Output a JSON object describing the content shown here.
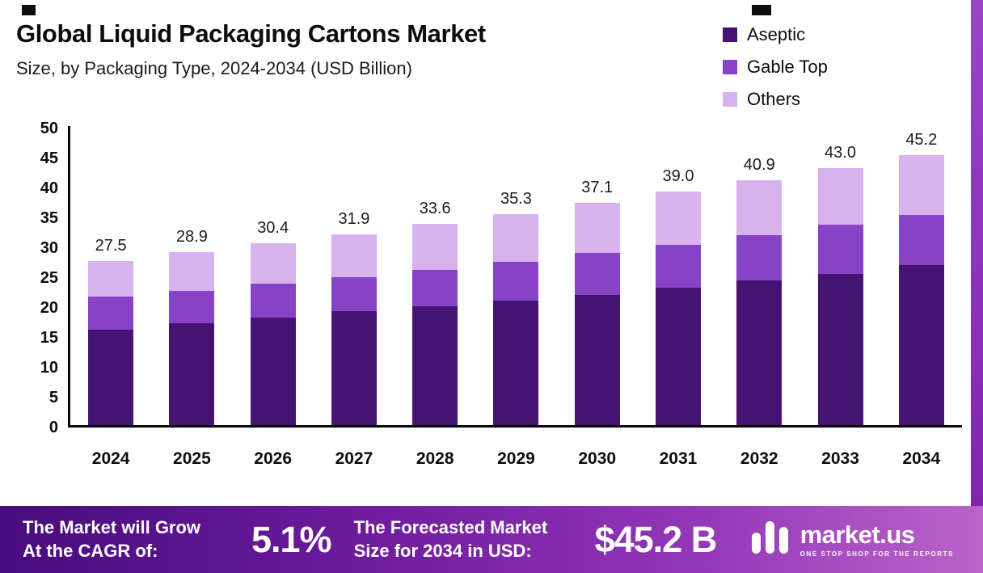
{
  "header": {
    "title": "Global Liquid Packaging Cartons Market",
    "subtitle": "Size, by Packaging Type, 2024-2034 (USD Billion)"
  },
  "legend": [
    {
      "label": "Aseptic",
      "color": "#451472"
    },
    {
      "label": "Gable Top",
      "color": "#8742c8"
    },
    {
      "label": "Others",
      "color": "#d8b2ec"
    }
  ],
  "chart_data": {
    "type": "bar",
    "stacked": true,
    "title": "Global Liquid Packaging Cartons Market Size, by Packaging Type, 2024-2034 (USD Billion)",
    "unit": "USD Billion",
    "categories": [
      "2024",
      "2025",
      "2026",
      "2027",
      "2028",
      "2029",
      "2030",
      "2031",
      "2032",
      "2033",
      "2034"
    ],
    "series": [
      {
        "name": "Aseptic",
        "color": "#451472",
        "values": [
          16.0,
          17.0,
          18.0,
          19.0,
          19.8,
          20.8,
          21.8,
          23.0,
          24.2,
          25.3,
          26.8
        ]
      },
      {
        "name": "Gable Top",
        "color": "#8742c8",
        "values": [
          5.5,
          5.5,
          5.6,
          5.8,
          6.2,
          6.5,
          7.0,
          7.2,
          7.6,
          8.2,
          8.3
        ]
      },
      {
        "name": "Others",
        "color": "#d8b2ec",
        "values": [
          6.0,
          6.4,
          6.8,
          7.1,
          7.6,
          8.0,
          8.3,
          8.8,
          9.1,
          9.5,
          10.1
        ]
      }
    ],
    "totals": [
      "27.5",
      "28.9",
      "30.4",
      "31.9",
      "33.6",
      "35.3",
      "37.1",
      "39.0",
      "40.9",
      "43.0",
      "45.2"
    ],
    "ylim": [
      0,
      50
    ],
    "yticks": [
      0,
      5,
      10,
      15,
      20,
      25,
      30,
      35,
      40,
      45,
      50
    ],
    "grid": false,
    "legend_position": "top-right"
  },
  "banner": {
    "growth_label_line1": "The Market will Grow",
    "growth_label_line2": "At the CAGR of:",
    "cagr_value": "5.1%",
    "forecast_label_line1": "The Forecasted Market",
    "forecast_label_line2": "Size for 2034 in USD:",
    "forecast_value": "$45.2 B",
    "brand_name": "market.us",
    "brand_tagline": "ONE STOP SHOP FOR THE REPORTS"
  }
}
